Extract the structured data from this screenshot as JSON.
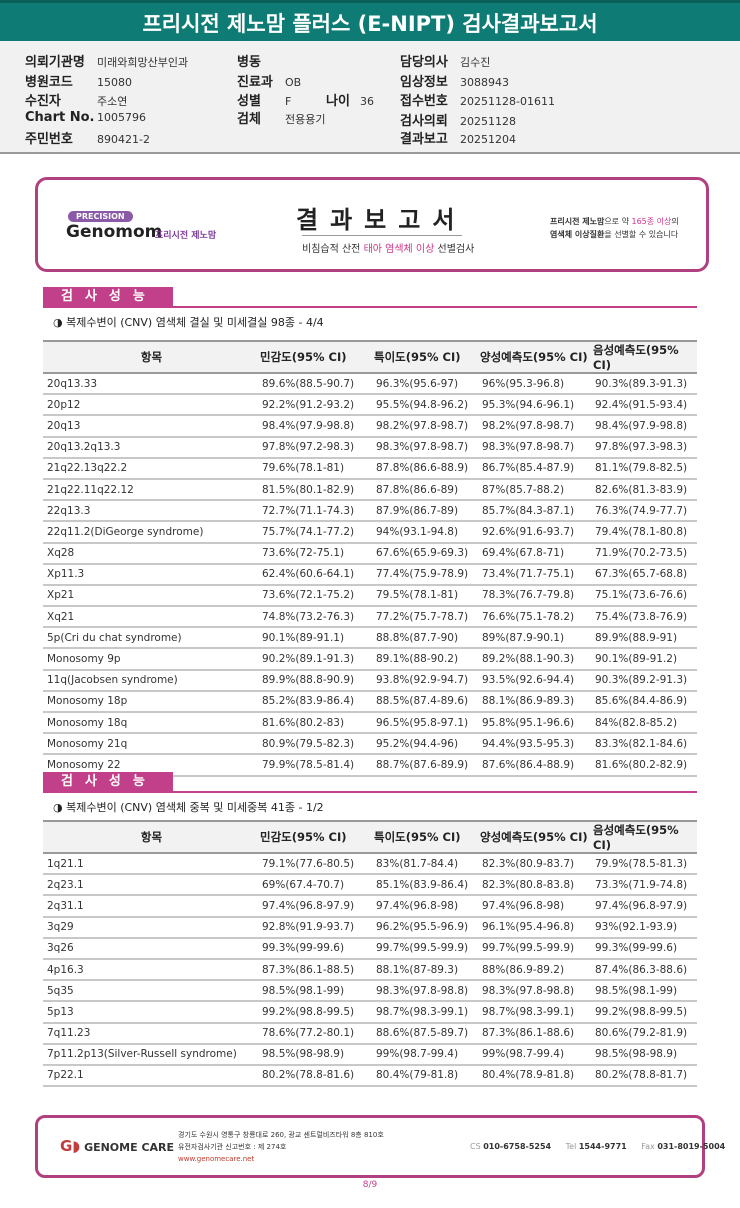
{
  "title": "프리시전 제노맘 플러스 (E-NIPT) 검사결과보고서",
  "info": {
    "hospital_label": "의뢰기관명",
    "hospital": "미래와희망산부인과",
    "code_label": "병원코드",
    "code": "15080",
    "patient_label": "수진자",
    "patient": "주소연",
    "chart_label": "Chart No.",
    "chart": "1005796",
    "rrn_label": "주민번호",
    "rrn": "890421-2",
    "ward_label": "병동",
    "ward": "",
    "dept_label": "진료과",
    "dept": "OB",
    "sex_label": "성별",
    "sex": "F",
    "age_label": "나이",
    "age": "36",
    "specimen_label": "검체",
    "specimen": "전용용기",
    "doctor_label": "담당의사",
    "doctor": "김수진",
    "clinical_label": "임상정보",
    "clinical": "3088943",
    "receipt_label": "접수번호",
    "receipt": "20251128-01611",
    "request_label": "검사의뢰",
    "request": "20251128",
    "report_label": "결과보고",
    "report": "20251204"
  },
  "banner": {
    "pill": "PRECISION",
    "brand": "Genomom",
    "brand_sub": "프리시전 제노맘",
    "title": "결과보고서",
    "sub_a": "비침습적 산전 ",
    "sub_b": "태아 염색체 이상",
    "sub_c": " 선별검사",
    "right_1a": "프리시전 제노맘",
    "right_1b": "으로 약 ",
    "right_1c": "165종 이상",
    "right_1d": "의",
    "right_2a": "염색체 이상질환",
    "right_2b": "을 선별할 수 있습니다"
  },
  "section1": {
    "label": "검사성능",
    "subtitle": "◑ 복제수변이 (CNV) 염색체 결실 및 미세결실 98종 - 4/4",
    "headers": [
      "항목",
      "민감도(95% CI)",
      "특이도(95% CI)",
      "양성예측도(95% CI)",
      "음성예측도(95% CI)"
    ],
    "rows": [
      [
        "20q13.33",
        "89.6%(88.5-90.7)",
        "96.3%(95.6-97)",
        "96%(95.3-96.8)",
        "90.3%(89.3-91.3)"
      ],
      [
        "20p12",
        "92.2%(91.2-93.2)",
        "95.5%(94.8-96.2)",
        "95.3%(94.6-96.1)",
        "92.4%(91.5-93.4)"
      ],
      [
        "20q13",
        "98.4%(97.9-98.8)",
        "98.2%(97.8-98.7)",
        "98.2%(97.8-98.7)",
        "98.4%(97.9-98.8)"
      ],
      [
        "20q13.2q13.3",
        "97.8%(97.2-98.3)",
        "98.3%(97.8-98.7)",
        "98.3%(97.8-98.7)",
        "97.8%(97.3-98.3)"
      ],
      [
        "21q22.13q22.2",
        "79.6%(78.1-81)",
        "87.8%(86.6-88.9)",
        "86.7%(85.4-87.9)",
        "81.1%(79.8-82.5)"
      ],
      [
        "21q22.11q22.12",
        "81.5%(80.1-82.9)",
        "87.8%(86.6-89)",
        "87%(85.7-88.2)",
        "82.6%(81.3-83.9)"
      ],
      [
        "22q13.3",
        "72.7%(71.1-74.3)",
        "87.9%(86.7-89)",
        "85.7%(84.3-87.1)",
        "76.3%(74.9-77.7)"
      ],
      [
        "22q11.2(DiGeorge syndrome)",
        "75.7%(74.1-77.2)",
        "94%(93.1-94.8)",
        "92.6%(91.6-93.7)",
        "79.4%(78.1-80.8)"
      ],
      [
        "Xq28",
        "73.6%(72-75.1)",
        "67.6%(65.9-69.3)",
        "69.4%(67.8-71)",
        "71.9%(70.2-73.5)"
      ],
      [
        "Xp11.3",
        "62.4%(60.6-64.1)",
        "77.4%(75.9-78.9)",
        "73.4%(71.7-75.1)",
        "67.3%(65.7-68.8)"
      ],
      [
        "Xp21",
        "73.6%(72.1-75.2)",
        "79.5%(78.1-81)",
        "78.3%(76.7-79.8)",
        "75.1%(73.6-76.6)"
      ],
      [
        "Xq21",
        "74.8%(73.2-76.3)",
        "77.2%(75.7-78.7)",
        "76.6%(75.1-78.2)",
        "75.4%(73.8-76.9)"
      ],
      [
        "5p(Cri du chat syndrome)",
        "90.1%(89-91.1)",
        "88.8%(87.7-90)",
        "89%(87.9-90.1)",
        "89.9%(88.9-91)"
      ],
      [
        "Monosomy 9p",
        "90.2%(89.1-91.3)",
        "89.1%(88-90.2)",
        "89.2%(88.1-90.3)",
        "90.1%(89-91.2)"
      ],
      [
        "11q(Jacobsen syndrome)",
        "89.9%(88.8-90.9)",
        "93.8%(92.9-94.7)",
        "93.5%(92.6-94.4)",
        "90.3%(89.2-91.3)"
      ],
      [
        "Monosomy 18p",
        "85.2%(83.9-86.4)",
        "88.5%(87.4-89.6)",
        "88.1%(86.9-89.3)",
        "85.6%(84.4-86.9)"
      ],
      [
        "Monosomy 18q",
        "81.6%(80.2-83)",
        "96.5%(95.8-97.1)",
        "95.8%(95.1-96.6)",
        "84%(82.8-85.2)"
      ],
      [
        "Monosomy 21q",
        "80.9%(79.5-82.3)",
        "95.2%(94.4-96)",
        "94.4%(93.5-95.3)",
        "83.3%(82.1-84.6)"
      ],
      [
        "Monosomy 22",
        "79.9%(78.5-81.4)",
        "88.7%(87.6-89.9)",
        "87.6%(86.4-88.9)",
        "81.6%(80.2-82.9)"
      ]
    ]
  },
  "section2": {
    "label": "검사성능",
    "subtitle": "◑ 복제수변이 (CNV) 염색체 중복 및 미세중복 41종 - 1/2",
    "headers": [
      "항목",
      "민감도(95% CI)",
      "특이도(95% CI)",
      "양성예측도(95% CI)",
      "음성예측도(95% CI)"
    ],
    "rows": [
      [
        "1q21.1",
        "79.1%(77.6-80.5)",
        "83%(81.7-84.4)",
        "82.3%(80.9-83.7)",
        "79.9%(78.5-81.3)"
      ],
      [
        "2q23.1",
        "69%(67.4-70.7)",
        "85.1%(83.9-86.4)",
        "82.3%(80.8-83.8)",
        "73.3%(71.9-74.8)"
      ],
      [
        "2q31.1",
        "97.4%(96.8-97.9)",
        "97.4%(96.8-98)",
        "97.4%(96.8-98)",
        "97.4%(96.8-97.9)"
      ],
      [
        "3q29",
        "92.8%(91.9-93.7)",
        "96.2%(95.5-96.9)",
        "96.1%(95.4-96.8)",
        "93%(92.1-93.9)"
      ],
      [
        "3q26",
        "99.3%(99-99.6)",
        "99.7%(99.5-99.9)",
        "99.7%(99.5-99.9)",
        "99.3%(99-99.6)"
      ],
      [
        "4p16.3",
        "87.3%(86.1-88.5)",
        "88.1%(87-89.3)",
        "88%(86.9-89.2)",
        "87.4%(86.3-88.6)"
      ],
      [
        "5q35",
        "98.5%(98.1-99)",
        "98.3%(97.8-98.8)",
        "98.3%(97.8-98.8)",
        "98.5%(98.1-99)"
      ],
      [
        "5p13",
        "99.2%(98.8-99.5)",
        "98.7%(98.3-99.1)",
        "98.7%(98.3-99.1)",
        "99.2%(98.8-99.5)"
      ],
      [
        "7q11.23",
        "78.6%(77.2-80.1)",
        "88.6%(87.5-89.7)",
        "87.3%(86.1-88.6)",
        "80.6%(79.2-81.9)"
      ],
      [
        "7p11.2p13(Silver-Russell syndrome)",
        "98.5%(98-98.9)",
        "99%(98.7-99.4)",
        "99%(98.7-99.4)",
        "98.5%(98-98.9)"
      ],
      [
        "7p22.1",
        "80.2%(78.8-81.6)",
        "80.4%(79-81.8)",
        "80.4%(78.9-81.8)",
        "80.2%(78.8-81.7)"
      ]
    ]
  },
  "footer": {
    "brand": "GENOME CARE",
    "address": "경기도 수원시 영통구 창룡대로 260, 광교 센트럴비즈타워 8층 810호",
    "license": "유전자검사기관 신고번호 : 제 274호",
    "web": "www.genomecare.net",
    "cs_label": "CS",
    "cs": "010-6758-5254",
    "tel_label": "Tel",
    "tel": "1544-9771",
    "fax_label": "Fax",
    "fax": "031-8019-5004"
  },
  "page": "8/9",
  "colors": {
    "title_bar": "#0e7c74",
    "accent": "#c2408a"
  }
}
